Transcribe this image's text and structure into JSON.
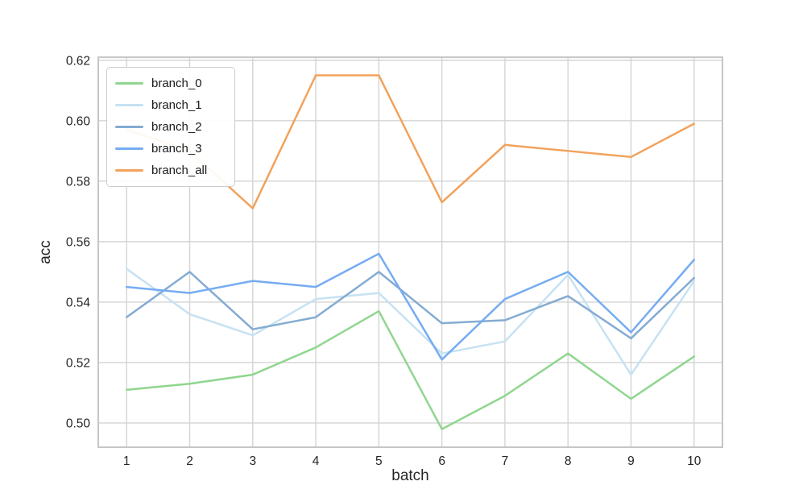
{
  "chart_data": {
    "type": "line",
    "title": "",
    "xlabel": "batch",
    "ylabel": "acc",
    "x": [
      1,
      2,
      3,
      4,
      5,
      6,
      7,
      8,
      9,
      10
    ],
    "series": [
      {
        "name": "branch_0",
        "color": "#90d68f",
        "values": [
          0.511,
          0.513,
          0.516,
          0.525,
          0.537,
          0.498,
          0.509,
          0.523,
          0.508,
          0.522
        ]
      },
      {
        "name": "branch_1",
        "color": "#c6e2f3",
        "values": [
          0.551,
          0.536,
          0.529,
          0.541,
          0.543,
          0.523,
          0.527,
          0.549,
          0.516,
          0.547
        ]
      },
      {
        "name": "branch_2",
        "color": "#85abd2",
        "values": [
          0.535,
          0.55,
          0.531,
          0.535,
          0.55,
          0.533,
          0.534,
          0.542,
          0.528,
          0.548
        ]
      },
      {
        "name": "branch_3",
        "color": "#76acf2",
        "values": [
          0.545,
          0.543,
          0.547,
          0.545,
          0.556,
          0.521,
          0.541,
          0.55,
          0.53,
          0.554
        ]
      },
      {
        "name": "branch_all",
        "color": "#f2a25c",
        "values": [
          0.597,
          0.59,
          0.571,
          0.615,
          0.615,
          0.573,
          0.592,
          0.59,
          0.588,
          0.599
        ]
      }
    ],
    "x_ticks": [
      "1",
      "2",
      "3",
      "4",
      "5",
      "6",
      "7",
      "8",
      "9",
      "10"
    ],
    "y_ticks": [
      "0.50",
      "0.52",
      "0.54",
      "0.56",
      "0.58",
      "0.60",
      "0.62"
    ],
    "xlim": [
      0.55,
      10.45
    ],
    "ylim": [
      0.492,
      0.621
    ],
    "grid": true,
    "legend_position": "upper left",
    "colors": {
      "grid": "#d4d4d4",
      "spine": "#c6c6c6",
      "tick_text": "#262626",
      "legend_text": "#1a1a1a",
      "background": "#ffffff"
    }
  }
}
